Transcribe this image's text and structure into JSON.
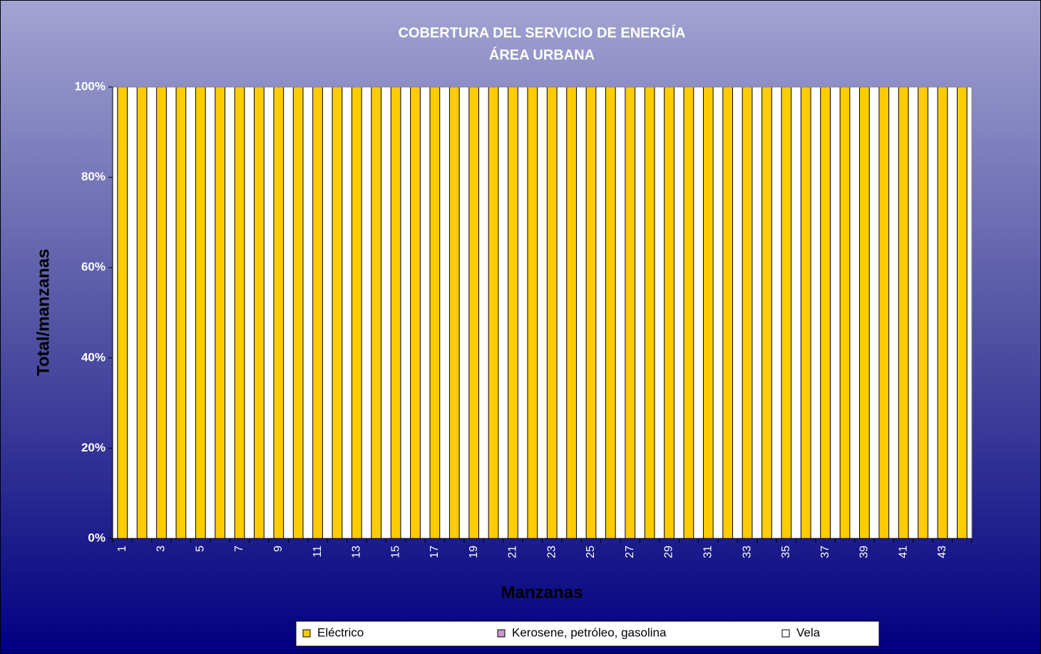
{
  "chart_data": {
    "type": "stacked_bar",
    "title": "COBERTURA DEL SERVICIO DE ENERGÍA",
    "subtitle": "ÁREA URBANA",
    "x_label": "Manzanas",
    "y_label": "Total/manzanas",
    "categories": [
      "1",
      null,
      "3",
      null,
      "5",
      null,
      "7",
      null,
      "9",
      null,
      "11",
      null,
      "13",
      null,
      "15",
      null,
      "17",
      null,
      "19",
      null,
      "21",
      null,
      "23",
      null,
      "25",
      null,
      "27",
      null,
      "29",
      null,
      "31",
      null,
      "33",
      null,
      "35",
      null,
      "37",
      null,
      "39",
      null,
      "41",
      null,
      "43",
      null
    ],
    "series": [
      {
        "name": "Eléctrico",
        "color": "#ffcc00",
        "values": [
          100,
          100,
          100,
          100,
          100,
          100,
          100,
          100,
          100,
          100,
          100,
          100,
          100,
          100,
          100,
          100,
          100,
          100,
          100,
          100,
          100,
          100,
          100,
          100,
          100,
          100,
          100,
          100,
          100,
          100,
          100,
          100,
          100,
          100,
          100,
          100,
          100,
          100,
          100,
          100,
          100,
          100,
          100,
          100
        ]
      },
      {
        "name": "Kerosene, petróleo, gasolina",
        "color": "#cc99cc",
        "values": [
          0,
          0,
          0,
          0,
          0,
          0,
          0,
          0,
          0,
          0,
          0,
          0,
          0,
          0,
          0,
          0,
          0,
          0,
          0,
          0,
          0,
          0,
          0,
          0,
          0,
          0,
          0,
          0,
          0,
          0,
          0,
          0,
          0,
          0,
          0,
          0,
          0,
          0,
          0,
          0,
          0,
          0,
          0,
          0
        ]
      },
      {
        "name": "Vela",
        "color": "#ffffff",
        "values": [
          0,
          0,
          0,
          0,
          0,
          0,
          0,
          0,
          0,
          0,
          0,
          0,
          0,
          0,
          0,
          0,
          0,
          0,
          0,
          0,
          0,
          0,
          0,
          0,
          0,
          0,
          0,
          0,
          0,
          0,
          0,
          0,
          0,
          0,
          0,
          0,
          0,
          0,
          0,
          0,
          0,
          0,
          0,
          0
        ]
      }
    ],
    "ylim": [
      0,
      100
    ],
    "yticks": [
      {
        "value": 0,
        "label": "0%"
      },
      {
        "value": 20,
        "label": "20%"
      },
      {
        "value": 40,
        "label": "40%"
      },
      {
        "value": 60,
        "label": "60%"
      },
      {
        "value": 80,
        "label": "80%"
      },
      {
        "value": 100,
        "label": "100%"
      }
    ],
    "legend": "bottom"
  }
}
